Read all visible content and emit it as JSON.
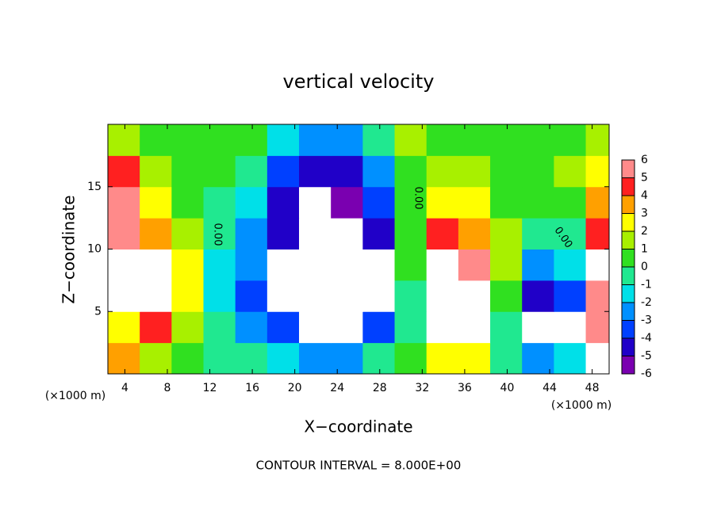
{
  "chart_data": {
    "type": "heatmap",
    "title": "vertical velocity",
    "x_label": "X−coordinate",
    "y_label": "Z−coordinate",
    "x_unit_label": "(×1000 m)",
    "footer": "CONTOUR INTERVAL = 8.000E+00",
    "contour_labels": [
      "0.00",
      "0.00",
      "0.00"
    ],
    "xlim": [
      2.4,
      49.6
    ],
    "ylim": [
      0,
      20
    ],
    "xticks": [
      4,
      8,
      12,
      16,
      20,
      24,
      28,
      32,
      36,
      40,
      44,
      48
    ],
    "yticks": [
      5,
      10,
      15
    ],
    "x": [
      3.9,
      6.9,
      9.9,
      12.9,
      15.9,
      18.9,
      21.9,
      24.9,
      27.9,
      30.9,
      33.9,
      36.9,
      39.9,
      42.9,
      45.9,
      48.9
    ],
    "y": [
      1.25,
      3.75,
      6.25,
      8.75,
      11.25,
      13.75,
      16.25,
      18.75
    ],
    "z": [
      [
        3,
        1,
        0.5,
        -0.5,
        -1,
        -2,
        -3,
        -3,
        -1,
        0,
        2,
        2,
        -1,
        -3,
        -2,
        8
      ],
      [
        2,
        4,
        1,
        -1,
        -2.5,
        -4,
        -8,
        -8,
        -4,
        -1,
        8,
        7,
        -0.5,
        -8,
        -7,
        5
      ],
      [
        8,
        8,
        2,
        -1.5,
        -3.5,
        -7,
        -8,
        -8,
        -8,
        -0.5,
        8,
        8,
        0,
        -5,
        -4,
        6
      ],
      [
        8,
        7,
        2,
        -1.5,
        -3,
        -8,
        -8,
        -8,
        -7,
        0,
        7,
        5,
        1,
        -3,
        -2,
        7
      ],
      [
        5,
        3,
        1,
        -1,
        -2.5,
        -5,
        -8,
        -8,
        -5,
        0,
        4,
        3,
        1,
        -1,
        -1,
        4
      ],
      [
        5,
        2,
        0.5,
        -0.5,
        -2,
        -5,
        -7,
        -6,
        -4,
        0,
        2,
        2,
        0.5,
        0,
        0.5,
        3
      ],
      [
        4,
        1,
        0,
        0,
        -1,
        -4,
        -5,
        -5,
        -3,
        0.5,
        1,
        1,
        0.5,
        0,
        1,
        2
      ],
      [
        1,
        0.5,
        0.5,
        0.5,
        0,
        -2,
        -3,
        -3,
        -1,
        1,
        0.5,
        0.5,
        0.5,
        0.5,
        0.5,
        1
      ]
    ],
    "clim": [
      -6,
      6
    ],
    "cticks": [
      -6,
      -5,
      -4,
      -3,
      -2,
      -1,
      0,
      1,
      2,
      3,
      4,
      5,
      6
    ],
    "colorscale": [
      "#7a00b0",
      "#2000c8",
      "#0040ff",
      "#0090ff",
      "#00e0e8",
      "#20e890",
      "#30e020",
      "#a8f000",
      "#ffff00",
      "#ffa000",
      "#ff2020",
      "#ff8a8a"
    ]
  }
}
